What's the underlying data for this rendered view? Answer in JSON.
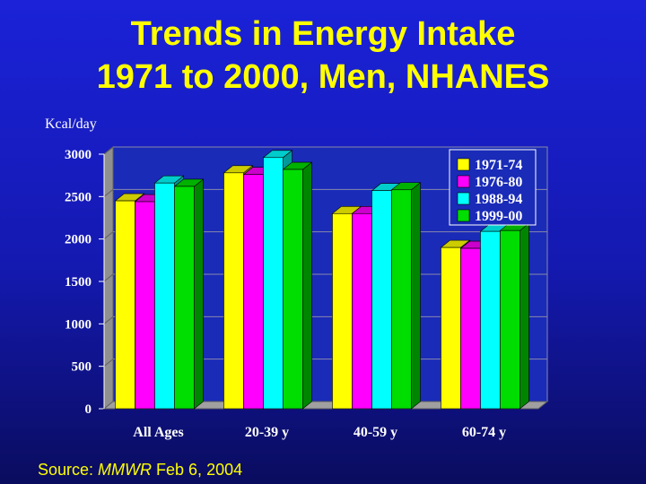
{
  "slide": {
    "title_line1": "Trends in Energy Intake",
    "title_line2": "1971 to 2000, Men, NHANES",
    "source_prefix": "Source: ",
    "source_journal": "MMWR",
    "source_date": " Feb 6, 2004",
    "colors": {
      "background": "#1b22d8",
      "title": "#ffff00",
      "axis_text": "#ffffff",
      "plot_area": "#1a2bb8"
    }
  },
  "chart_data": {
    "type": "bar",
    "title": "",
    "xlabel": "",
    "ylabel": "Kcal/day",
    "ylim": [
      0,
      3000
    ],
    "yticks": [
      "0",
      "500",
      "1000",
      "1500",
      "2000",
      "2500",
      "3000"
    ],
    "categories": [
      "All Ages",
      "20-39 y",
      "40-59 y",
      "60-74 y"
    ],
    "series": [
      {
        "name": "1971-74",
        "color": "#ffff00",
        "values": [
          2450,
          2780,
          2300,
          1900
        ]
      },
      {
        "name": "1976-80",
        "color": "#ff00ff",
        "values": [
          2440,
          2760,
          2300,
          1890
        ]
      },
      {
        "name": "1988-94",
        "color": "#00ffff",
        "values": [
          2660,
          2960,
          2570,
          2090
        ]
      },
      {
        "name": "1999-00",
        "color": "#00dd00",
        "values": [
          2620,
          2820,
          2580,
          2100
        ]
      }
    ],
    "legend_position": "top-right",
    "style": "3d",
    "grid": true
  }
}
